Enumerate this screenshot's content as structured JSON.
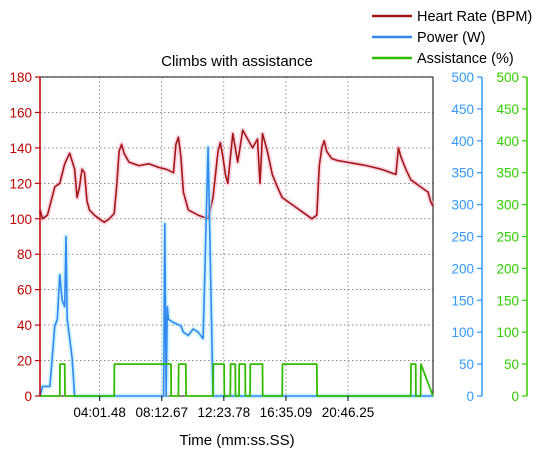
{
  "chart_data": {
    "type": "line",
    "title": "Climbs with assistance",
    "xlabel": "Time (mm:ss.SS)",
    "x_range": [
      0,
      1590
    ],
    "x_ticks": [
      {
        "t": 241.48,
        "label": "04:01.48"
      },
      {
        "t": 492.67,
        "label": "08:12.67"
      },
      {
        "t": 743.78,
        "label": "12:23.78"
      },
      {
        "t": 995.09,
        "label": "16:35.09"
      },
      {
        "t": 1246.25,
        "label": "20:46.25"
      }
    ],
    "axes": [
      {
        "id": "hr",
        "side": "left",
        "color": "#c00000",
        "range": [
          0,
          180
        ],
        "ticks": [
          "0",
          "20",
          "40",
          "60",
          "80",
          "100",
          "120",
          "140",
          "160",
          "180"
        ]
      },
      {
        "id": "power",
        "side": "right",
        "color": "#3399ff",
        "range": [
          0,
          500
        ],
        "ticks": [
          "0",
          "50",
          "100",
          "150",
          "200",
          "250",
          "300",
          "350",
          "400",
          "450",
          "500"
        ]
      },
      {
        "id": "assist",
        "side": "right",
        "color": "#33cc00",
        "range": [
          0,
          500
        ],
        "ticks": [
          "0",
          "50",
          "100",
          "150",
          "200",
          "250",
          "300",
          "350",
          "400",
          "450",
          "500"
        ]
      }
    ],
    "legend": {
      "position": "top-right"
    },
    "grid": true,
    "series": [
      {
        "name": "Heart Rate (BPM)",
        "axis": "hr",
        "color": "#a01818",
        "x": [
          0,
          10,
          30,
          60,
          80,
          100,
          120,
          140,
          150,
          160,
          170,
          180,
          190,
          200,
          220,
          240,
          260,
          280,
          300,
          310,
          320,
          330,
          340,
          360,
          400,
          440,
          480,
          510,
          540,
          550,
          560,
          570,
          580,
          600,
          640,
          680,
          700,
          720,
          730,
          740,
          750,
          760,
          780,
          790,
          800,
          820,
          840,
          860,
          880,
          890,
          900,
          920,
          940,
          960,
          980,
          1000,
          1020,
          1040,
          1060,
          1080,
          1100,
          1120,
          1130,
          1140,
          1150,
          1160,
          1180,
          1200,
          1240,
          1280,
          1320,
          1350,
          1380,
          1400,
          1420,
          1440,
          1450,
          1460,
          1480,
          1500,
          1520,
          1540,
          1560,
          1570,
          1580,
          1590
        ],
        "values": [
          105,
          100,
          102,
          118,
          120,
          131,
          137,
          128,
          112,
          118,
          128,
          126,
          110,
          105,
          102,
          100,
          98,
          100,
          103,
          118,
          138,
          142,
          137,
          132,
          130,
          131,
          129,
          128,
          126,
          142,
          146,
          135,
          115,
          105,
          102,
          100,
          112,
          138,
          143,
          135,
          125,
          120,
          148,
          140,
          132,
          150,
          145,
          140,
          145,
          120,
          148,
          138,
          125,
          118,
          112,
          110,
          108,
          106,
          104,
          102,
          100,
          102,
          130,
          140,
          144,
          138,
          134,
          133,
          132,
          131,
          130,
          129,
          128,
          127,
          126,
          125,
          140,
          135,
          128,
          122,
          120,
          118,
          116,
          115,
          110,
          107
        ]
      },
      {
        "name": "Power (W)",
        "axis": "power",
        "color": "#3388ee",
        "x": [
          0,
          10,
          40,
          60,
          70,
          80,
          90,
          100,
          105,
          110,
          120,
          130,
          140,
          150,
          160,
          170,
          180,
          190,
          200,
          220,
          230,
          250,
          260,
          265,
          270,
          280,
          300,
          320,
          340,
          360,
          380,
          400,
          420,
          440,
          460,
          480,
          490,
          500,
          505,
          510,
          515,
          520,
          540,
          570,
          580,
          600,
          620,
          640,
          660,
          680,
          700,
          720,
          730,
          735,
          740,
          750,
          760,
          780,
          785,
          790,
          800,
          820,
          830,
          835,
          840,
          850,
          870,
          880,
          885,
          890,
          900,
          920,
          930,
          940,
          950,
          960,
          980,
          1000,
          1020,
          1040,
          1060,
          1080,
          1100,
          1120,
          1130,
          1140,
          1145,
          1150,
          1160,
          1180,
          1200,
          1220,
          1240,
          1260,
          1280,
          1300,
          1320,
          1340,
          1360,
          1370,
          1380,
          1385,
          1390,
          1400,
          1420,
          1440,
          1450,
          1460,
          1480,
          1500,
          1520,
          1540,
          1560,
          1580,
          1590
        ],
        "values": [
          0,
          15,
          15,
          110,
          120,
          190,
          150,
          140,
          250,
          120,
          90,
          60,
          0,
          0,
          0,
          0,
          0,
          0,
          0,
          0,
          0,
          0,
          0,
          0,
          0,
          0,
          0,
          0,
          0,
          0,
          0,
          0,
          0,
          0,
          0,
          0,
          0,
          0,
          270,
          0,
          140,
          120,
          115,
          110,
          100,
          95,
          105,
          100,
          90,
          390,
          0,
          0,
          0,
          0,
          0,
          0,
          0,
          0,
          0,
          0,
          0,
          0,
          0,
          0,
          0,
          0,
          0,
          0,
          0,
          0,
          0,
          0,
          0,
          0,
          0,
          0,
          0,
          0,
          0,
          0,
          0,
          0,
          0,
          0,
          0,
          0,
          0,
          0,
          0,
          0,
          0,
          0,
          0,
          0,
          0,
          0,
          0,
          0,
          0,
          0,
          0,
          0,
          0,
          0,
          0,
          0,
          0,
          0,
          0,
          0,
          0,
          0,
          0,
          0,
          0
        ]
      },
      {
        "name": "Assistance (%)",
        "axis": "assist",
        "color": "#33bb00",
        "x": [
          0,
          80,
          81,
          100,
          101,
          150,
          151,
          300,
          301,
          530,
          531,
          560,
          561,
          590,
          591,
          700,
          701,
          745,
          746,
          770,
          771,
          790,
          791,
          805,
          806,
          830,
          831,
          850,
          851,
          900,
          901,
          980,
          981,
          1120,
          1121,
          1500,
          1501,
          1520,
          1521,
          1540,
          1541,
          1590
        ],
        "values": [
          0,
          0,
          50,
          50,
          0,
          0,
          0,
          0,
          50,
          50,
          0,
          0,
          50,
          50,
          0,
          0,
          50,
          50,
          0,
          0,
          50,
          50,
          0,
          0,
          50,
          50,
          0,
          0,
          50,
          50,
          0,
          0,
          50,
          50,
          0,
          0,
          50,
          50,
          0,
          0,
          50,
          0
        ]
      }
    ]
  },
  "legend_items": [
    {
      "label": "Heart Rate (BPM)",
      "color": "#a01818"
    },
    {
      "label": "Power (W)",
      "color": "#3388ee"
    },
    {
      "label": "Assistance (%)",
      "color": "#33bb00"
    }
  ]
}
